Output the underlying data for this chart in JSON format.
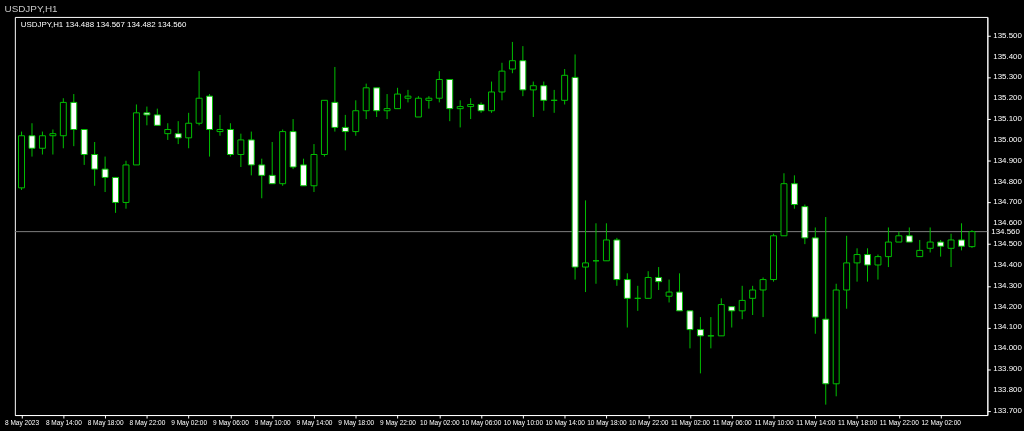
{
  "chart_data": {
    "type": "candlestick",
    "title": "USDJPY,H1",
    "annotations": [
      "USDJPY,H1  134.488 134.567 134.482 134.560"
    ],
    "color": "#00c000",
    "grid": false,
    "x": [
      "2023-05-08T10:00",
      "2023-05-08T11:00",
      "2023-05-08T12:00",
      "2023-05-08T13:00",
      "2023-05-08T14:00",
      "2023-05-08T15:00",
      "2023-05-08T16:00",
      "2023-05-08T17:00",
      "2023-05-08T18:00",
      "2023-05-08T19:00",
      "2023-05-08T20:00",
      "2023-05-08T21:00",
      "2023-05-08T22:00",
      "2023-05-08T23:00",
      "2023-05-09T00:00",
      "2023-05-09T01:00",
      "2023-05-09T02:00",
      "2023-05-09T03:00",
      "2023-05-09T04:00",
      "2023-05-09T05:00",
      "2023-05-09T06:00",
      "2023-05-09T07:00",
      "2023-05-09T08:00",
      "2023-05-09T09:00",
      "2023-05-09T10:00",
      "2023-05-09T11:00",
      "2023-05-09T12:00",
      "2023-05-09T13:00",
      "2023-05-09T14:00",
      "2023-05-09T15:00",
      "2023-05-09T16:00",
      "2023-05-09T17:00",
      "2023-05-09T18:00",
      "2023-05-09T19:00",
      "2023-05-09T20:00",
      "2023-05-09T21:00",
      "2023-05-09T22:00",
      "2023-05-09T23:00",
      "2023-05-10T00:00",
      "2023-05-10T01:00",
      "2023-05-10T02:00",
      "2023-05-10T03:00",
      "2023-05-10T04:00",
      "2023-05-10T05:00",
      "2023-05-10T06:00",
      "2023-05-10T07:00",
      "2023-05-10T08:00",
      "2023-05-10T09:00",
      "2023-05-10T10:00",
      "2023-05-10T11:00",
      "2023-05-10T12:00",
      "2023-05-10T13:00",
      "2023-05-10T14:00",
      "2023-05-10T15:00",
      "2023-05-10T16:00",
      "2023-05-10T17:00",
      "2023-05-10T18:00",
      "2023-05-10T19:00",
      "2023-05-10T20:00",
      "2023-05-10T21:00",
      "2023-05-10T22:00",
      "2023-05-10T23:00",
      "2023-05-11T00:00",
      "2023-05-11T01:00",
      "2023-05-11T02:00",
      "2023-05-11T03:00",
      "2023-05-11T04:00",
      "2023-05-11T05:00",
      "2023-05-11T06:00",
      "2023-05-11T07:00",
      "2023-05-11T08:00",
      "2023-05-11T09:00",
      "2023-05-11T10:00",
      "2023-05-11T11:00",
      "2023-05-11T12:00",
      "2023-05-11T13:00",
      "2023-05-11T14:00",
      "2023-05-11T15:00",
      "2023-05-11T16:00",
      "2023-05-11T17:00",
      "2023-05-11T18:00",
      "2023-05-11T19:00",
      "2023-05-11T20:00",
      "2023-05-11T21:00",
      "2023-05-11T22:00",
      "2023-05-11T23:00",
      "2023-05-12T00:00",
      "2023-05-12T01:00",
      "2023-05-12T02:00",
      "2023-05-12T03:00",
      "2023-05-12T04:00",
      "2023-05-12T05:00"
    ],
    "ohlc": [
      [
        134.77,
        135.04,
        134.76,
        135.02
      ],
      [
        135.02,
        135.08,
        134.92,
        134.96
      ],
      [
        134.96,
        135.04,
        134.93,
        135.02
      ],
      [
        135.02,
        135.05,
        134.93,
        135.03
      ],
      [
        135.02,
        135.2,
        134.96,
        135.18
      ],
      [
        135.18,
        135.22,
        134.97,
        135.05
      ],
      [
        135.05,
        135.05,
        134.88,
        134.93
      ],
      [
        134.93,
        134.99,
        134.78,
        134.86
      ],
      [
        134.86,
        134.92,
        134.75,
        134.82
      ],
      [
        134.82,
        134.82,
        134.65,
        134.7
      ],
      [
        134.7,
        134.9,
        134.67,
        134.88
      ],
      [
        134.88,
        135.17,
        134.88,
        135.13
      ],
      [
        135.13,
        135.16,
        135.07,
        135.12
      ],
      [
        135.12,
        135.15,
        135.07,
        135.07
      ],
      [
        135.03,
        135.08,
        135.0,
        135.05
      ],
      [
        135.03,
        135.09,
        134.98,
        135.01
      ],
      [
        135.01,
        135.13,
        134.96,
        135.08
      ],
      [
        135.08,
        135.33,
        135.07,
        135.2
      ],
      [
        135.21,
        135.22,
        134.92,
        135.05
      ],
      [
        135.04,
        135.12,
        135.02,
        135.05
      ],
      [
        135.05,
        135.08,
        134.92,
        134.93
      ],
      [
        134.93,
        135.03,
        134.87,
        135.0
      ],
      [
        135.0,
        135.04,
        134.83,
        134.88
      ],
      [
        134.88,
        134.91,
        134.72,
        134.83
      ],
      [
        134.83,
        134.99,
        134.79,
        134.79
      ],
      [
        134.79,
        135.05,
        134.78,
        135.04
      ],
      [
        135.04,
        135.1,
        134.86,
        134.87
      ],
      [
        134.88,
        134.91,
        134.78,
        134.78
      ],
      [
        134.78,
        134.98,
        134.75,
        134.93
      ],
      [
        134.93,
        135.19,
        134.92,
        135.19
      ],
      [
        135.18,
        135.35,
        135.04,
        135.06
      ],
      [
        135.06,
        135.12,
        134.95,
        135.04
      ],
      [
        135.04,
        135.19,
        135.02,
        135.14
      ],
      [
        135.14,
        135.27,
        135.1,
        135.25
      ],
      [
        135.25,
        135.25,
        135.11,
        135.14
      ],
      [
        135.14,
        135.22,
        135.1,
        135.15
      ],
      [
        135.15,
        135.25,
        135.15,
        135.22
      ],
      [
        135.2,
        135.24,
        135.18,
        135.21
      ],
      [
        135.11,
        135.21,
        135.11,
        135.2
      ],
      [
        135.19,
        135.21,
        135.15,
        135.2
      ],
      [
        135.2,
        135.33,
        135.18,
        135.29
      ],
      [
        135.29,
        135.29,
        135.09,
        135.15
      ],
      [
        135.15,
        135.19,
        135.06,
        135.16
      ],
      [
        135.16,
        135.2,
        135.1,
        135.17
      ],
      [
        135.17,
        135.18,
        135.13,
        135.14
      ],
      [
        135.14,
        135.28,
        135.13,
        135.23
      ],
      [
        135.23,
        135.37,
        135.19,
        135.33
      ],
      [
        135.34,
        135.47,
        135.32,
        135.38
      ],
      [
        135.38,
        135.45,
        135.21,
        135.24
      ],
      [
        135.24,
        135.28,
        135.11,
        135.26
      ],
      [
        135.26,
        135.28,
        135.14,
        135.19
      ],
      [
        135.19,
        135.24,
        135.13,
        135.19
      ],
      [
        135.19,
        135.34,
        135.17,
        135.31
      ],
      [
        135.3,
        135.41,
        134.33,
        134.39
      ],
      [
        134.39,
        134.71,
        134.27,
        134.41
      ],
      [
        134.42,
        134.6,
        134.31,
        134.42
      ],
      [
        134.42,
        134.6,
        134.42,
        134.52
      ],
      [
        134.52,
        134.53,
        134.3,
        134.33
      ],
      [
        134.33,
        134.36,
        134.1,
        134.24
      ],
      [
        134.24,
        134.3,
        134.18,
        134.24
      ],
      [
        134.24,
        134.37,
        134.24,
        134.34
      ],
      [
        134.34,
        134.39,
        134.28,
        134.32
      ],
      [
        134.25,
        134.33,
        134.22,
        134.27
      ],
      [
        134.27,
        134.36,
        134.18,
        134.18
      ],
      [
        134.18,
        134.18,
        134.0,
        134.09
      ],
      [
        134.09,
        134.15,
        133.88,
        134.06
      ],
      [
        134.06,
        134.15,
        134.0,
        134.06
      ],
      [
        134.06,
        134.24,
        134.06,
        134.21
      ],
      [
        134.2,
        134.2,
        134.1,
        134.18
      ],
      [
        134.18,
        134.3,
        134.14,
        134.23
      ],
      [
        134.24,
        134.3,
        134.16,
        134.28
      ],
      [
        134.28,
        134.34,
        134.15,
        134.33
      ],
      [
        134.33,
        134.55,
        134.32,
        134.54
      ],
      [
        134.54,
        134.84,
        134.54,
        134.79
      ],
      [
        134.79,
        134.83,
        134.67,
        134.69
      ],
      [
        134.68,
        134.69,
        134.5,
        134.53
      ],
      [
        134.53,
        134.58,
        134.07,
        134.15
      ],
      [
        134.14,
        134.63,
        133.73,
        133.83
      ],
      [
        133.83,
        134.31,
        133.77,
        134.28
      ],
      [
        134.28,
        134.54,
        134.19,
        134.41
      ],
      [
        134.41,
        134.48,
        134.32,
        134.45
      ],
      [
        134.45,
        134.48,
        134.32,
        134.4
      ],
      [
        134.4,
        134.45,
        134.33,
        134.44
      ],
      [
        134.44,
        134.58,
        134.39,
        134.51
      ],
      [
        134.51,
        134.56,
        134.51,
        134.54
      ],
      [
        134.54,
        134.58,
        134.51,
        134.51
      ],
      [
        134.44,
        134.52,
        134.44,
        134.47
      ],
      [
        134.48,
        134.58,
        134.46,
        134.51
      ],
      [
        134.51,
        134.52,
        134.44,
        134.49
      ],
      [
        134.48,
        134.55,
        134.39,
        134.52
      ],
      [
        134.52,
        134.6,
        134.47,
        134.49
      ],
      [
        134.488,
        134.567,
        134.482,
        134.56
      ]
    ],
    "xlim": [
      "2023-05-08T09:50",
      "2023-05-12T06:00"
    ],
    "xticks": [
      {
        "value": "2023-05-08T10:00",
        "label": "8 May 2023"
      },
      {
        "value": "2023-05-08T14:00",
        "label": "8 May 14:00"
      },
      {
        "value": "2023-05-08T18:00",
        "label": "8 May 18:00"
      },
      {
        "value": "2023-05-08T22:00",
        "label": "8 May 22:00"
      },
      {
        "value": "2023-05-09T02:00",
        "label": "9 May 02:00"
      },
      {
        "value": "2023-05-09T06:00",
        "label": "9 May 06:00"
      },
      {
        "value": "2023-05-09T10:00",
        "label": "9 May 10:00"
      },
      {
        "value": "2023-05-09T14:00",
        "label": "9 May 14:00"
      },
      {
        "value": "2023-05-09T18:00",
        "label": "9 May 18:00"
      },
      {
        "value": "2023-05-09T22:00",
        "label": "9 May 22:00"
      },
      {
        "value": "2023-05-10T02:00",
        "label": "10 May 02:00"
      },
      {
        "value": "2023-05-10T06:00",
        "label": "10 May 06:00"
      },
      {
        "value": "2023-05-10T10:00",
        "label": "10 May 10:00"
      },
      {
        "value": "2023-05-10T14:00",
        "label": "10 May 14:00"
      },
      {
        "value": "2023-05-10T18:00",
        "label": "10 May 18:00"
      },
      {
        "value": "2023-05-10T22:00",
        "label": "10 May 22:00"
      },
      {
        "value": "2023-05-11T02:00",
        "label": "11 May 02:00"
      },
      {
        "value": "2023-05-11T06:00",
        "label": "11 May 06:00"
      },
      {
        "value": "2023-05-11T10:00",
        "label": "11 May 10:00"
      },
      {
        "value": "2023-05-11T14:00",
        "label": "11 May 14:00"
      },
      {
        "value": "2023-05-11T18:00",
        "label": "11 May 18:00"
      },
      {
        "value": "2023-05-11T22:00",
        "label": "11 May 22:00"
      },
      {
        "value": "2023-05-12T02:00",
        "label": "12 May 02:00"
      }
    ],
    "ylim": [
      133.68,
      135.59
    ],
    "yticks": [
      {
        "value": 133.7,
        "label": "133.700"
      },
      {
        "value": 133.8,
        "label": "133.800"
      },
      {
        "value": 133.9,
        "label": "133.900"
      },
      {
        "value": 134.0,
        "label": "134.000"
      },
      {
        "value": 134.1,
        "label": "134.100"
      },
      {
        "value": 134.2,
        "label": "134.200"
      },
      {
        "value": 134.3,
        "label": "134.300"
      },
      {
        "value": 134.4,
        "label": "134.400"
      },
      {
        "value": 134.5,
        "label": "134.500"
      },
      {
        "value": 134.6,
        "label": "134.600"
      },
      {
        "value": 134.7,
        "label": "134.700"
      },
      {
        "value": 134.8,
        "label": "134.800"
      },
      {
        "value": 134.9,
        "label": "134.900"
      },
      {
        "value": 135.0,
        "label": "135.000"
      },
      {
        "value": 135.1,
        "label": "135.100"
      },
      {
        "value": 135.2,
        "label": "135.200"
      },
      {
        "value": 135.3,
        "label": "135.300"
      },
      {
        "value": 135.4,
        "label": "135.400"
      },
      {
        "value": 135.5,
        "label": "135.500"
      }
    ],
    "ref_lines": [
      {
        "axis": "y",
        "value": 134.56,
        "label": "134.560",
        "color": "#808080"
      }
    ]
  }
}
